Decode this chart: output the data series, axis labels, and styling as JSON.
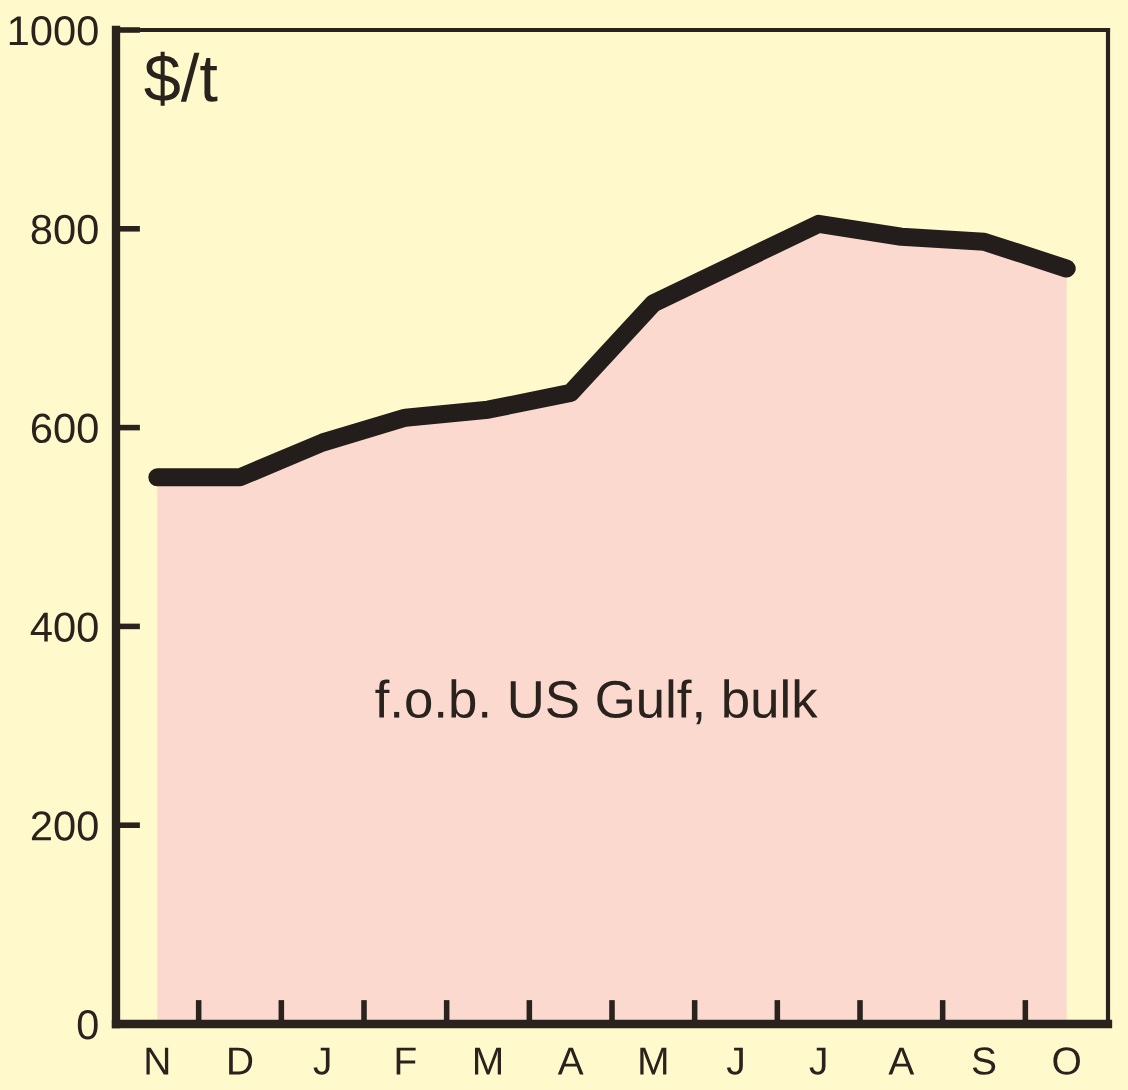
{
  "chart_data": {
    "type": "area",
    "ylabel": "$/t",
    "annotations": [
      "f.o.b. US Gulf, bulk"
    ],
    "categories": [
      "N",
      "D",
      "J",
      "F",
      "M",
      "A",
      "M",
      "J",
      "J",
      "A",
      "S",
      "O"
    ],
    "series": [
      {
        "color": "#fcd9cf",
        "values": [
          550,
          550,
          585,
          610,
          618,
          635,
          725,
          765,
          805,
          792,
          787,
          760
        ]
      }
    ],
    "ylim": [
      0,
      1000
    ],
    "yticks": [
      0,
      200,
      400,
      600,
      800,
      1000
    ]
  }
}
